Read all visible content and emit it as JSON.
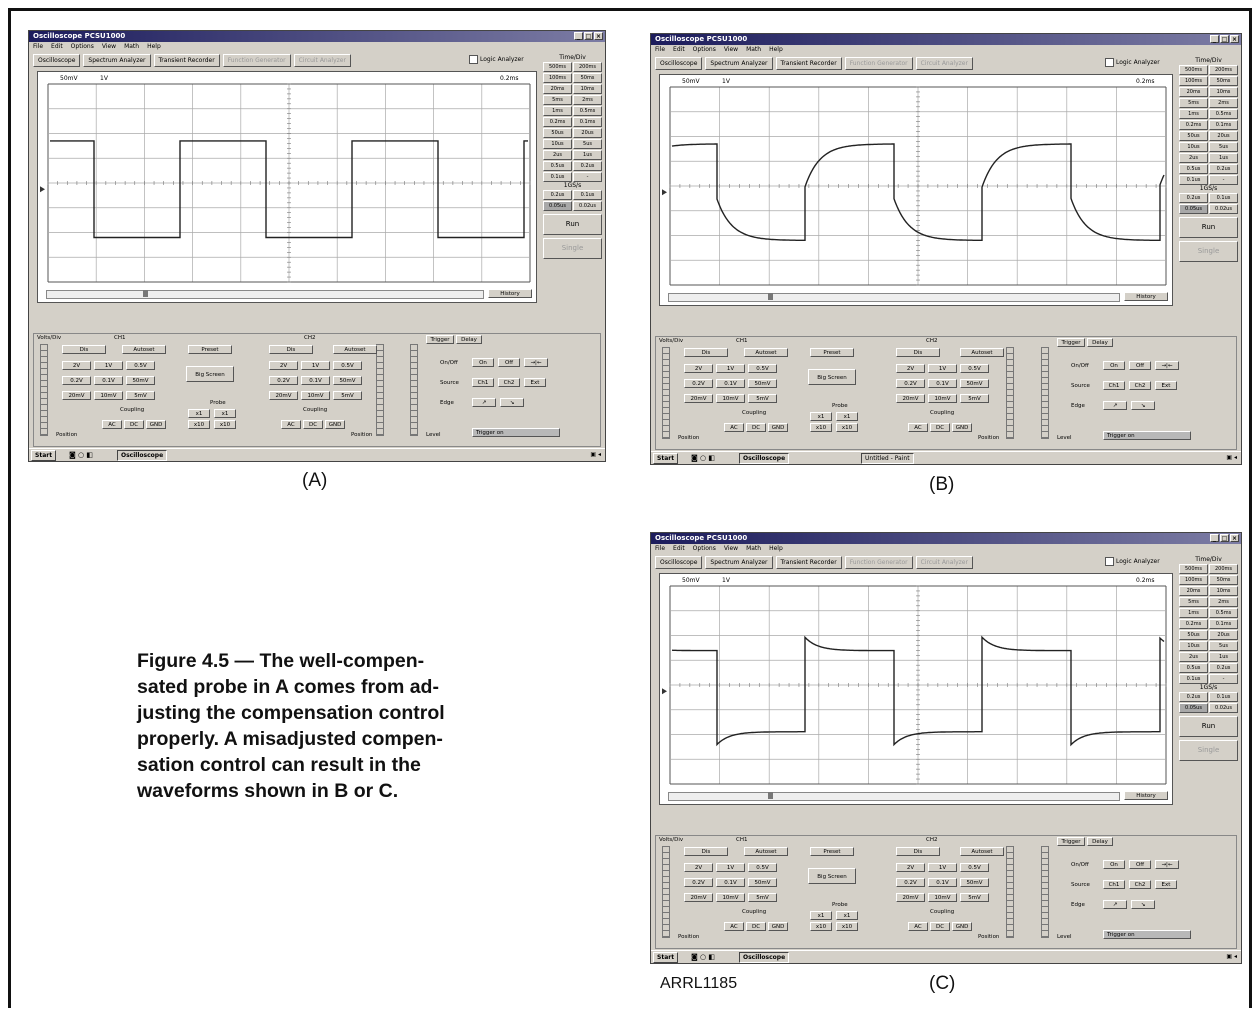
{
  "figure": {
    "caption_lines": [
      "Figure 4.5 — The well-compen-",
      "sated probe in A comes from ad-",
      "justing the compensation control",
      "properly. A misadjusted compen-",
      "sation control can result in the",
      "waveforms shown in B or C."
    ],
    "figure_id": "ARRL1185",
    "panel_labels": [
      "(A)",
      "(B)",
      "(C)"
    ]
  },
  "app": {
    "window_title": "Oscilloscope PCSU1000",
    "window_buttons": [
      "_",
      "□",
      "×"
    ],
    "menu": [
      "File",
      "Edit",
      "Options",
      "View",
      "Math",
      "Help"
    ],
    "tabs": [
      "Oscilloscope",
      "Spectrum Analyzer",
      "Transient Recorder",
      "Function Generator",
      "Circuit Analyzer"
    ],
    "logic_analyzer": "Logic Analyzer",
    "timediv": {
      "header": "Time/Div",
      "buttons": [
        "500ms",
        "200ms",
        "100ms",
        "50ms",
        "20ms",
        "10ms",
        "5ms",
        "2ms",
        "1ms",
        "0.5ms",
        "0.2ms",
        "0.1ms",
        "50us",
        "20us",
        "10us",
        "5us",
        "2us",
        "1us",
        "0.5us",
        "0.2us",
        "0.1us",
        "-"
      ],
      "samp_label": "1GS/s",
      "samp_buttons": [
        "0.2us",
        "0.1us",
        "0.05us",
        "0.02us"
      ],
      "run": "Run",
      "single": "Single"
    },
    "history": "History",
    "volts_div": "Volts/Div",
    "ch1": "CH1",
    "ch2": "CH2",
    "ch1_buttons": [
      "Dis",
      "Autoset",
      "Preset"
    ],
    "ch2_buttons": [
      "Dis",
      "Autoset"
    ],
    "ch1_volts": [
      "2V",
      "1V",
      "0.5V",
      "0.2V",
      "0.1V",
      "50mV",
      "20mV",
      "10mV",
      "5mV"
    ],
    "ch2_volts": [
      "2V",
      "1V",
      "0.5V",
      "0.2V",
      "0.1V",
      "50mV",
      "20mV",
      "10mV",
      "5mV"
    ],
    "big_screen": "Big Screen",
    "coupling": "Coupling",
    "coupling_buttons": [
      "AC",
      "DC",
      "GND"
    ],
    "probe": "Probe",
    "probe_buttons": [
      "x1",
      "x1",
      "x10",
      "x10"
    ],
    "position": "Position",
    "trigger_tab": "Trigger",
    "delay_tab": "Delay",
    "onoff": "On/Off",
    "source": "Source",
    "edge": "Edge",
    "level": "Level",
    "trigger_buttons": [
      "On",
      "Off",
      "Ch1",
      "Ch2",
      "Ext"
    ],
    "trigger_status": "Trigger on",
    "start": "Start",
    "taskbar_app": "Oscilloscope",
    "taskbar_extra": "Untitled - Paint"
  },
  "panels": [
    {
      "id": "A",
      "volts_readout": "50mV",
      "probe_readout": "1V",
      "time_readout": "0.2ms",
      "waveform": "square"
    },
    {
      "id": "B",
      "volts_readout": "50mV",
      "probe_readout": "1V",
      "time_readout": "0.2ms",
      "waveform": "undercompensated"
    },
    {
      "id": "C",
      "volts_readout": "50mV",
      "probe_readout": "1V",
      "time_readout": "0.2ms",
      "waveform": "overcompensated"
    }
  ]
}
